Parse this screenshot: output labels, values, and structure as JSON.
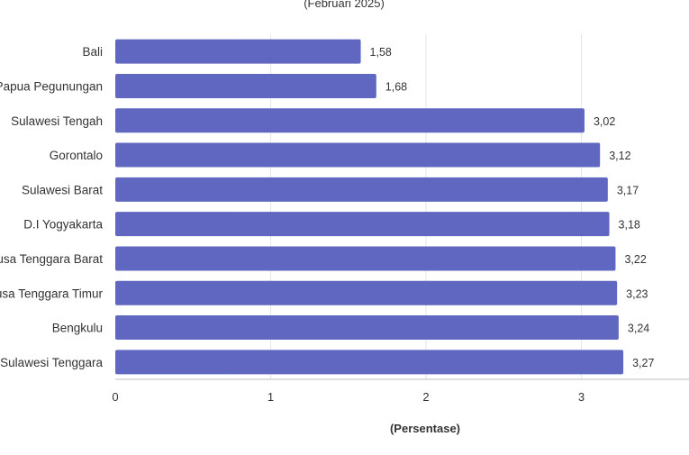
{
  "chart_data": {
    "type": "bar",
    "orientation": "horizontal",
    "subtitle": "(Februari 2025)",
    "xlabel": "(Persentase)",
    "ylabel": "",
    "categories": [
      "Bali",
      "Papua Pegunungan",
      "Sulawesi Tengah",
      "Gorontalo",
      "Sulawesi Barat",
      "D.I Yogyakarta",
      "Nusa Tenggara Barat",
      "Nusa Tenggara Timur",
      "Bengkulu",
      "Sulawesi Tenggara"
    ],
    "values": [
      1.58,
      1.68,
      3.02,
      3.12,
      3.17,
      3.18,
      3.22,
      3.23,
      3.24,
      3.27
    ],
    "data_labels": [
      "1,58",
      "1,68",
      "3,02",
      "3,12",
      "3,17",
      "3,18",
      "3,22",
      "3,23",
      "3,24",
      "3,27"
    ],
    "xlim": [
      0,
      3.7
    ],
    "xticks": [
      0,
      1,
      2,
      3
    ],
    "xtick_labels": [
      "0",
      "1",
      "2",
      "3"
    ],
    "grid": true,
    "legend": "none",
    "bar_color": "#5f67c0",
    "grid_color": "#e6e6e6",
    "axis_color": "#333333",
    "text_color": "#333333"
  }
}
